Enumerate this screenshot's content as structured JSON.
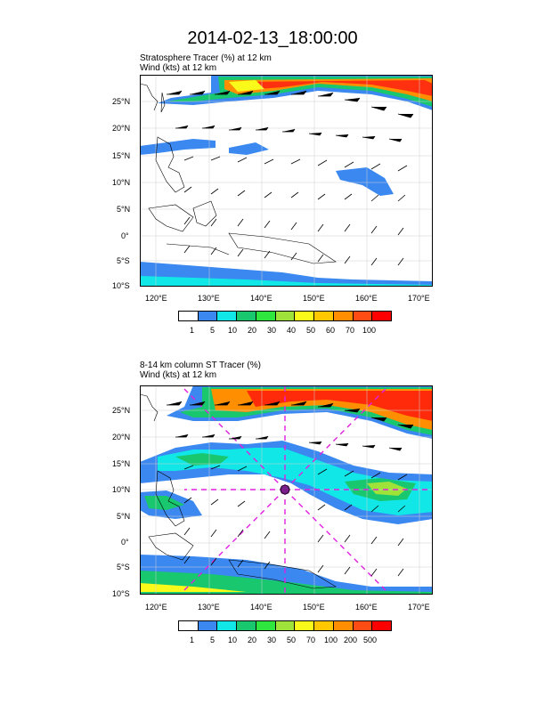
{
  "title": "2014-02-13_18:00:00",
  "panel1": {
    "line1": "Stratosphere Tracer   (%)     at   12 km",
    "line2": "Wind    (kts)      at   12 km",
    "colorbar_colors": [
      "#ffffff",
      "#3a88f0",
      "#11e7e7",
      "#18c76e",
      "#2ee63e",
      "#9fe23a",
      "#f9f91a",
      "#ffc800",
      "#ff8f00",
      "#ff4b14",
      "#ff0000"
    ],
    "colorbar_labels": [
      "1",
      "5",
      "10",
      "20",
      "30",
      "40",
      "50",
      "60",
      "70",
      "100"
    ]
  },
  "panel2": {
    "line1": "8-14 km column ST Tracer    (%)",
    "line2": "Wind    (kts)      at   12 km",
    "colorbar_colors": [
      "#ffffff",
      "#3a88f0",
      "#11e7e7",
      "#18c76e",
      "#2ee63e",
      "#9fe23a",
      "#f9f91a",
      "#ffc800",
      "#ff8f00",
      "#ff4b14",
      "#ff0000"
    ],
    "colorbar_labels": [
      "1",
      "5",
      "10",
      "20",
      "30",
      "50",
      "70",
      "100",
      "200",
      "500"
    ]
  },
  "map": {
    "lat_labels": [
      "25°N",
      "20°N",
      "15°N",
      "10°N",
      "5°N",
      "0°",
      "5°S",
      "10°S"
    ],
    "lon_labels": [
      "120°E",
      "130°E",
      "140°E",
      "150°E",
      "160°E",
      "170°E"
    ]
  }
}
